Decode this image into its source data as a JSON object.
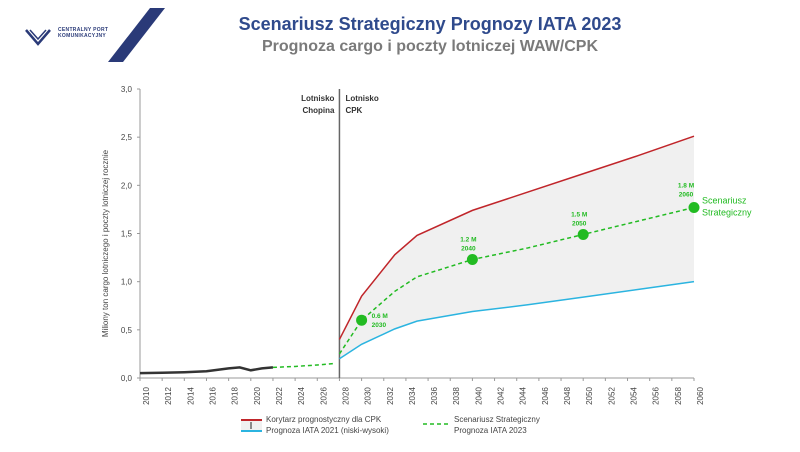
{
  "header": {
    "title": "Scenariusz Strategiczny Prognozy IATA 2023",
    "subtitle": "Prognoza cargo i poczty lotniczej WAW/CPK",
    "logo_text_line1": "CENTRALNY PORT",
    "logo_text_line2": "KOMUNIKACYJNY"
  },
  "colors": {
    "title": "#2f4a8c",
    "high": "#c0252a",
    "low": "#2bb4e0",
    "scenario": "#22bb22",
    "history": "#333333",
    "band": "#f0f0f0"
  },
  "chart_data": {
    "type": "line",
    "ylabel": "Miliony ton cargo lotniczego i poczty lotniczej rocznie",
    "ylim": [
      0,
      3.0
    ],
    "xlim": [
      2010,
      2060
    ],
    "y_ticks": [
      "0,0",
      "0,5",
      "1,0",
      "1,5",
      "2,0",
      "2,5",
      "3,0"
    ],
    "x_ticks": [
      "2010",
      "2012",
      "2014",
      "2016",
      "2018",
      "2020",
      "2022",
      "2024",
      "2026",
      "2028",
      "2030",
      "2032",
      "2034",
      "2036",
      "2038",
      "2040",
      "2042",
      "2044",
      "2046",
      "2048",
      "2050",
      "2052",
      "2054",
      "2056",
      "2058",
      "2060"
    ],
    "divider_year": 2028,
    "divider_left_label": [
      "Lotnisko",
      "Chopina"
    ],
    "divider_right_label": [
      "Lotnisko",
      "CPK"
    ],
    "series": [
      {
        "id": "history",
        "x": [
          2010,
          2012,
          2014,
          2016,
          2018,
          2019,
          2020,
          2021,
          2022
        ],
        "y": [
          0.05,
          0.055,
          0.06,
          0.07,
          0.1,
          0.11,
          0.08,
          0.1,
          0.11
        ]
      },
      {
        "id": "scenario_bridge",
        "x": [
          2022,
          2024,
          2026,
          2027.5
        ],
        "y": [
          0.11,
          0.12,
          0.135,
          0.15
        ]
      },
      {
        "id": "high",
        "name": "Korytarz prognostyczny dla CPK",
        "x": [
          2028,
          2030,
          2033,
          2035,
          2040,
          2045,
          2050,
          2055,
          2060
        ],
        "y": [
          0.4,
          0.85,
          1.28,
          1.48,
          1.74,
          1.93,
          2.12,
          2.31,
          2.51
        ]
      },
      {
        "id": "low",
        "name": "Prognoza IATA 2021 (niski-wysoki)",
        "x": [
          2028,
          2030,
          2033,
          2035,
          2040,
          2045,
          2050,
          2055,
          2060
        ],
        "y": [
          0.2,
          0.35,
          0.51,
          0.59,
          0.69,
          0.76,
          0.84,
          0.92,
          1.0
        ]
      },
      {
        "id": "scenario",
        "name": "Scenariusz Strategiczny Prognoza IATA 2023",
        "x": [
          2028,
          2030,
          2033,
          2035,
          2040,
          2045,
          2050,
          2055,
          2060
        ],
        "y": [
          0.25,
          0.6,
          0.9,
          1.05,
          1.23,
          1.35,
          1.49,
          1.63,
          1.77
        ]
      }
    ],
    "points": [
      {
        "x": 2030,
        "y": 0.6,
        "label_value": "0.6 M",
        "label_year": "2030"
      },
      {
        "x": 2040,
        "y": 1.23,
        "label_value": "1.2 M",
        "label_year": "2040"
      },
      {
        "x": 2050,
        "y": 1.49,
        "label_value": "1.5 M",
        "label_year": "2050"
      },
      {
        "x": 2060,
        "y": 1.77,
        "label_value": "1.8 M",
        "label_year": "2060"
      }
    ],
    "end_label": [
      "Scenariusz",
      "Strategiczny"
    ],
    "legend": {
      "left_line1": "Korytarz prognostyczny dla CPK",
      "left_line2": "Prognoza IATA 2021 (niski-wysoki)",
      "right_line1": "Scenariusz Strategiczny",
      "right_line2": "Prognoza IATA 2023"
    }
  }
}
